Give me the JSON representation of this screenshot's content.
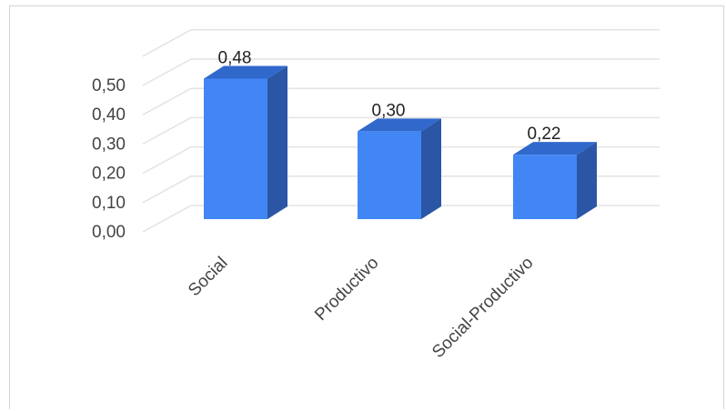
{
  "chart_data": {
    "type": "bar",
    "categories": [
      "Social",
      "Productivo",
      "Social-Productivo"
    ],
    "values": [
      0.48,
      0.3,
      0.22
    ],
    "data_labels": [
      "0,48",
      "0,30",
      "0,22"
    ],
    "y_ticks": [
      "0,00",
      "0,10",
      "0,20",
      "0,30",
      "0,40",
      "0,50"
    ],
    "ylim": [
      0,
      0.5
    ],
    "grid": true,
    "style": "3d-column",
    "colors": {
      "front": "#4285f4",
      "side": "#2b56a6",
      "top": "#3068cc",
      "grid": "#e3e3e3"
    }
  }
}
